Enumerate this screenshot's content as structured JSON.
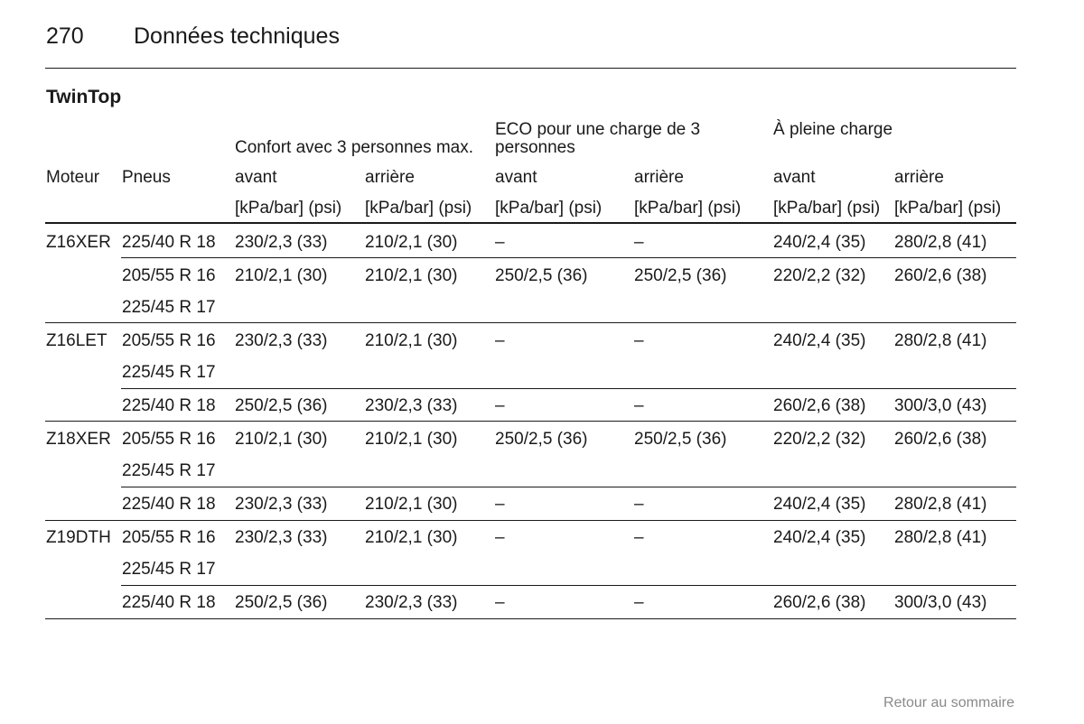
{
  "page": {
    "number": "270",
    "chapter": "Données techniques",
    "footer": "Retour au sommaire"
  },
  "section": "TwinTop",
  "table": {
    "groups": [
      "Confort avec 3 personnes max.",
      "ECO pour une charge de 3 personnes",
      "À pleine charge"
    ],
    "col_moteur": "Moteur",
    "col_pneus": "Pneus",
    "sub": [
      "avant",
      "arrière",
      "avant",
      "arrière",
      "avant",
      "arrière"
    ],
    "unit": "[kPa/bar] (psi)",
    "rows": [
      {
        "moteur": "Z16XER",
        "pneus": [
          "225/40 R 18"
        ],
        "values": [
          "230/2,3 (33)",
          "210/2,1 (30)",
          "–",
          "–",
          "240/2,4 (35)",
          "280/2,8 (41)"
        ]
      },
      {
        "moteur": "",
        "pneus": [
          "205/55 R 16",
          "225/45 R 17"
        ],
        "values": [
          "210/2,1 (30)",
          "210/2,1 (30)",
          "250/2,5 (36)",
          "250/2,5 (36)",
          "220/2,2 (32)",
          "260/2,6 (38)"
        ]
      },
      {
        "moteur": "Z16LET",
        "pneus": [
          "205/55 R 16",
          "225/45 R 17"
        ],
        "values": [
          "230/2,3 (33)",
          "210/2,1 (30)",
          "–",
          "–",
          "240/2,4 (35)",
          "280/2,8 (41)"
        ]
      },
      {
        "moteur": "",
        "pneus": [
          "225/40 R 18"
        ],
        "values": [
          "250/2,5 (36)",
          "230/2,3 (33)",
          "–",
          "–",
          "260/2,6 (38)",
          "300/3,0 (43)"
        ]
      },
      {
        "moteur": "Z18XER",
        "pneus": [
          "205/55 R 16",
          "225/45 R 17"
        ],
        "values": [
          "210/2,1 (30)",
          "210/2,1 (30)",
          "250/2,5 (36)",
          "250/2,5 (36)",
          "220/2,2 (32)",
          "260/2,6 (38)"
        ]
      },
      {
        "moteur": "",
        "pneus": [
          "225/40 R 18"
        ],
        "values": [
          "230/2,3 (33)",
          "210/2,1 (30)",
          "–",
          "–",
          "240/2,4 (35)",
          "280/2,8 (41)"
        ]
      },
      {
        "moteur": "Z19DTH",
        "pneus": [
          "205/55 R 16",
          "225/45 R 17"
        ],
        "values": [
          "230/2,3 (33)",
          "210/2,1 (30)",
          "–",
          "–",
          "240/2,4 (35)",
          "280/2,8 (41)"
        ]
      },
      {
        "moteur": "",
        "pneus": [
          "225/40 R 18"
        ],
        "values": [
          "250/2,5 (36)",
          "230/2,3 (33)",
          "–",
          "–",
          "260/2,6 (38)",
          "300/3,0 (43)"
        ]
      }
    ]
  }
}
